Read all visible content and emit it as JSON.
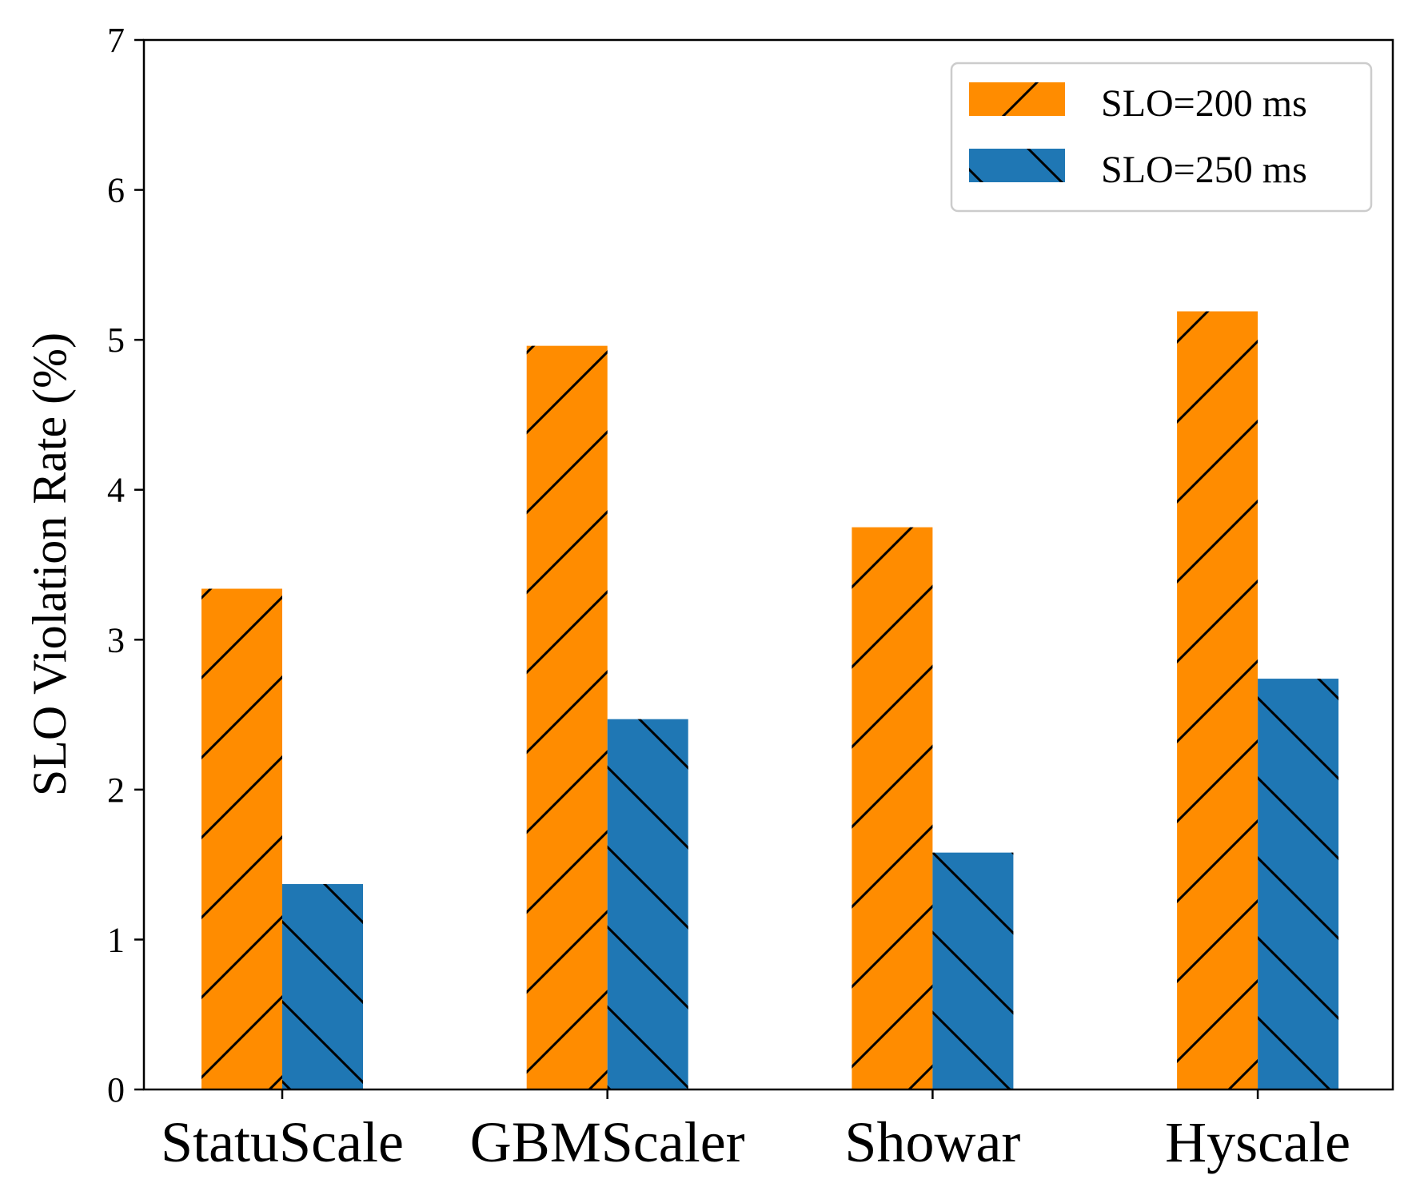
{
  "chart_data": {
    "type": "bar",
    "categories": [
      "StatuScale",
      "GBMScaler",
      "Showar",
      "Hyscale"
    ],
    "series": [
      {
        "name": "SLO=200 ms",
        "color": "#ff8c00",
        "hatch": "/",
        "values": [
          3.34,
          4.96,
          3.75,
          5.19
        ]
      },
      {
        "name": "SLO=250 ms",
        "color": "#1f77b4",
        "hatch": "\\",
        "values": [
          1.37,
          2.47,
          1.58,
          2.74
        ]
      }
    ],
    "xlabel": "",
    "ylabel": "SLO Violation Rate (%)",
    "ylim": [
      0,
      7
    ],
    "yticks": [
      "0",
      "1",
      "2",
      "3",
      "4",
      "5",
      "6",
      "7"
    ],
    "grid": false,
    "legend_position": "top-right"
  }
}
